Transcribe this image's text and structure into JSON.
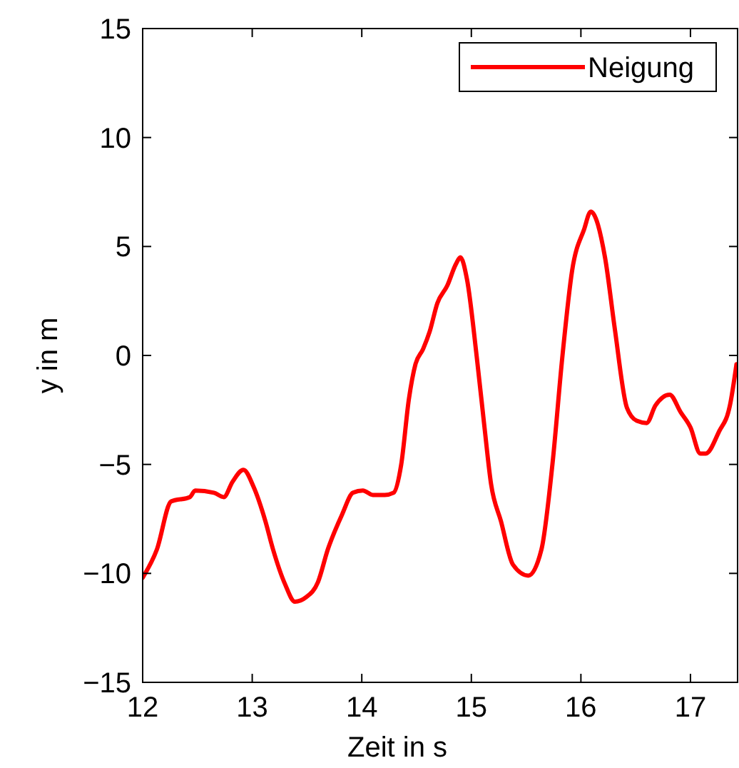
{
  "chart_data": {
    "type": "line",
    "xlabel": "Zeit in s",
    "ylabel": "y in m",
    "xlim": [
      12,
      17.43
    ],
    "ylim": [
      -15,
      15
    ],
    "xticks": [
      12,
      13,
      14,
      15,
      16,
      17
    ],
    "yticks": [
      -15,
      -10,
      -5,
      0,
      5,
      10,
      15
    ],
    "grid": false,
    "legend": "top right",
    "series": [
      {
        "name": "Neigung",
        "color": "#ff0000",
        "x": [
          12,
          12.13,
          12.26,
          12.43,
          12.48,
          12.65,
          12.74,
          12.82,
          12.92,
          13.01,
          13.12,
          13.19,
          13.3,
          13.39,
          13.49,
          13.6,
          13.69,
          13.82,
          13.92,
          14.01,
          14.1,
          14.21,
          14.29,
          14.36,
          14.43,
          14.49,
          14.56,
          14.62,
          14.69,
          14.78,
          14.86,
          14.9,
          14.96,
          15.05,
          15.12,
          15.18,
          15.27,
          15.38,
          15.52,
          15.64,
          15.74,
          15.83,
          15.92,
          16.03,
          16.09,
          16.22,
          16.31,
          16.42,
          16.51,
          16.6,
          16.68,
          16.81,
          16.91,
          17.0,
          17.09,
          17.14,
          17.26,
          17.36,
          17.42
        ],
        "values": [
          -10.2,
          -8.9,
          -6.7,
          -6.5,
          -6.2,
          -6.3,
          -6.5,
          -5.8,
          -5.25,
          -6.0,
          -7.6,
          -8.9,
          -10.5,
          -11.3,
          -11.1,
          -10.4,
          -8.9,
          -7.3,
          -6.3,
          -6.2,
          -6.4,
          -6.4,
          -6.3,
          -5.0,
          -2.0,
          -0.4,
          0.3,
          1.1,
          2.4,
          3.2,
          4.2,
          4.5,
          3.5,
          -0.1,
          -3.3,
          -5.9,
          -7.6,
          -9.6,
          -10.1,
          -8.9,
          -5.0,
          -0.1,
          3.9,
          5.8,
          6.6,
          4.5,
          1.2,
          -2.4,
          -3.0,
          -3.1,
          -2.3,
          -1.8,
          -2.6,
          -3.3,
          -4.5,
          -4.5,
          -3.5,
          -2.3,
          -0.4
        ]
      }
    ]
  }
}
